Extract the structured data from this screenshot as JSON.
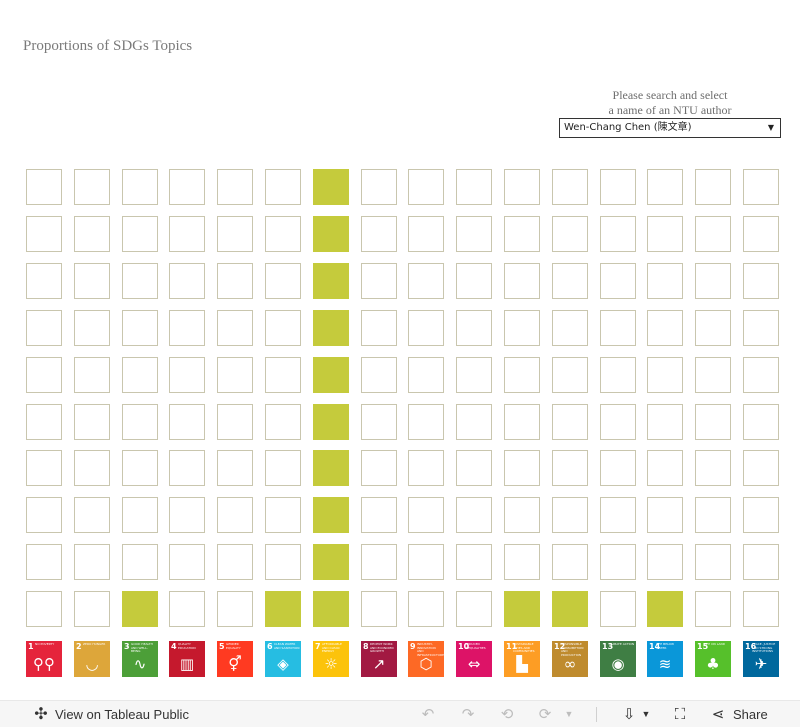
{
  "title": "Proportions of SDGs Topics",
  "search": {
    "label_line1": "Please search and select",
    "label_line2": "a name of an NTU author",
    "selected_author": "Wen-Chang Chen (陳文章)"
  },
  "colors": {
    "filled": "#c5cb3c",
    "empty_border": "#c9c6ae"
  },
  "waffle": {
    "rows": 10,
    "columns": 16,
    "filled_cells_per_column": [
      0,
      0,
      1,
      0,
      0,
      1,
      10,
      0,
      0,
      0,
      1,
      1,
      0,
      1,
      0,
      0
    ]
  },
  "sdgs": [
    {
      "number": "1",
      "caption": "No Poverty",
      "color": "#e5243b",
      "icon": "people-icon"
    },
    {
      "number": "2",
      "caption": "Zero Hunger",
      "color": "#dda63a",
      "icon": "bowl-icon"
    },
    {
      "number": "3",
      "caption": "Good Health and Well-Being",
      "color": "#4c9f38",
      "icon": "heartbeat-icon"
    },
    {
      "number": "4",
      "caption": "Quality Education",
      "color": "#c5192d",
      "icon": "book-icon"
    },
    {
      "number": "5",
      "caption": "Gender Equality",
      "color": "#ff3a21",
      "icon": "gender-icon"
    },
    {
      "number": "6",
      "caption": "Clean Water and Sanitation",
      "color": "#26bde2",
      "icon": "water-drop-icon"
    },
    {
      "number": "7",
      "caption": "Affordable and Clean Energy",
      "color": "#fcc30b",
      "icon": "sun-icon"
    },
    {
      "number": "8",
      "caption": "Decent Work and Economic Growth",
      "color": "#a21942",
      "icon": "growth-chart-icon"
    },
    {
      "number": "9",
      "caption": "Industry, Innovation and Infrastructure",
      "color": "#fd6925",
      "icon": "cubes-icon"
    },
    {
      "number": "10",
      "caption": "Reduced Inequalities",
      "color": "#dd1367",
      "icon": "equality-icon"
    },
    {
      "number": "11",
      "caption": "Sustainable Cities and Communities",
      "color": "#fd9d24",
      "icon": "city-icon"
    },
    {
      "number": "12",
      "caption": "Responsible Consumption and Production",
      "color": "#bf8b2e",
      "icon": "infinity-icon"
    },
    {
      "number": "13",
      "caption": "Climate Action",
      "color": "#3f7e44",
      "icon": "eye-icon"
    },
    {
      "number": "14",
      "caption": "Life Below Water",
      "color": "#0a97d9",
      "icon": "fish-icon"
    },
    {
      "number": "15",
      "caption": "Life on Land",
      "color": "#56c02b",
      "icon": "tree-icon"
    },
    {
      "number": "16",
      "caption": "Peace, Justice and Strong Institutions",
      "color": "#00689d",
      "icon": "dove-icon"
    }
  ],
  "toolbar": {
    "view_on_tableau": "View on Tableau Public",
    "share": "Share"
  }
}
